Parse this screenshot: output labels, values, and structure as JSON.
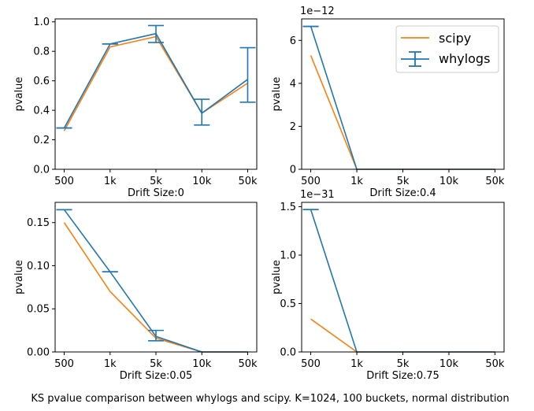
{
  "figure": {
    "caption": "KS pvalue comparison between whylogs and scipy. K=1024, 100 buckets, normal distribution"
  },
  "colors": {
    "scipy": "#ff7f0e",
    "whylogs": "#1f77b4"
  },
  "legend": {
    "placement": "upper-right of top-right subplot",
    "entries": [
      "scipy",
      "whylogs"
    ]
  },
  "chart_data": [
    {
      "type": "line",
      "title": "",
      "xlabel": "Drift Size:0",
      "ylabel": "pvalue",
      "categories": [
        "500",
        "1k",
        "5k",
        "10k",
        "50k"
      ],
      "ylim": [
        0,
        1.02
      ],
      "yticks": [
        0.0,
        0.2,
        0.4,
        0.6,
        0.8,
        1.0
      ],
      "ytick_labels": [
        "0.0",
        "0.2",
        "0.4",
        "0.6",
        "0.8",
        "1.0"
      ],
      "offset_label": "",
      "series": [
        {
          "name": "scipy",
          "values": [
            0.26,
            0.83,
            0.9,
            0.38,
            0.585
          ]
        },
        {
          "name": "whylogs",
          "values": [
            0.28,
            0.85,
            0.92,
            0.38,
            0.61
          ],
          "err_low": [
            0.28,
            0.85,
            0.86,
            0.3,
            0.455
          ],
          "err_high": [
            0.28,
            0.85,
            0.975,
            0.475,
            0.825
          ]
        }
      ]
    },
    {
      "type": "line",
      "title": "",
      "xlabel": "Drift Size:0.4",
      "ylabel": "pvalue",
      "categories": [
        "500",
        "1k",
        "5k",
        "10k",
        "50k"
      ],
      "ylim": [
        0,
        7.0
      ],
      "yticks": [
        0,
        2,
        4,
        6
      ],
      "ytick_labels": [
        "0",
        "2",
        "4",
        "6"
      ],
      "offset_label": "1e−12",
      "series": [
        {
          "name": "scipy",
          "values": [
            5.3,
            0,
            0,
            0,
            0
          ]
        },
        {
          "name": "whylogs",
          "values": [
            6.65,
            0,
            0,
            0,
            0
          ],
          "err_low": [
            6.65,
            0,
            0,
            0,
            0
          ],
          "err_high": [
            6.65,
            0,
            0,
            0,
            0
          ]
        }
      ]
    },
    {
      "type": "line",
      "title": "",
      "xlabel": "Drift Size:0.05",
      "ylabel": "pvalue",
      "categories": [
        "500",
        "1k",
        "5k",
        "10k",
        "50k"
      ],
      "ylim": [
        0,
        0.1735
      ],
      "yticks": [
        0.0,
        0.05,
        0.1,
        0.15
      ],
      "ytick_labels": [
        "0.00",
        "0.05",
        "0.10",
        "0.15"
      ],
      "offset_label": "",
      "series": [
        {
          "name": "scipy",
          "values": [
            0.15,
            0.07,
            0.016,
            0,
            0
          ]
        },
        {
          "name": "whylogs",
          "values": [
            0.165,
            0.093,
            0.018,
            0,
            0
          ],
          "err_low": [
            0.165,
            0.093,
            0.013,
            0,
            0
          ],
          "err_high": [
            0.165,
            0.093,
            0.025,
            0,
            0
          ]
        }
      ]
    },
    {
      "type": "line",
      "title": "",
      "xlabel": "Drift Size:0.75",
      "ylabel": "pvalue",
      "categories": [
        "500",
        "1k",
        "5k",
        "10k",
        "50k"
      ],
      "ylim": [
        0,
        1.545
      ],
      "yticks": [
        0.0,
        0.5,
        1.0,
        1.5
      ],
      "ytick_labels": [
        "0.0",
        "0.5",
        "1.0",
        "1.5"
      ],
      "offset_label": "1e−31",
      "series": [
        {
          "name": "scipy",
          "values": [
            0.34,
            0,
            0,
            0,
            0
          ]
        },
        {
          "name": "whylogs",
          "values": [
            1.47,
            0,
            0,
            0,
            0
          ],
          "err_low": [
            1.47,
            0,
            0,
            0,
            0
          ],
          "err_high": [
            1.47,
            0,
            0,
            0,
            0
          ]
        }
      ]
    }
  ]
}
